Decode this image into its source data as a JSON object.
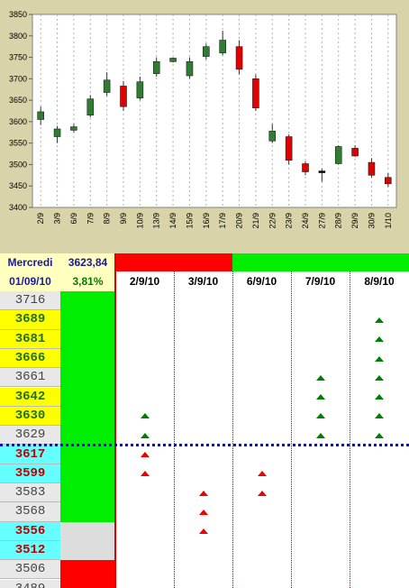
{
  "chart_data": {
    "type": "candlestick",
    "ylim": [
      3400,
      3850
    ],
    "yticks": [
      3400,
      3450,
      3500,
      3550,
      3600,
      3650,
      3700,
      3750,
      3800,
      3850
    ],
    "categories": [
      "2/9",
      "3/9",
      "6/9",
      "7/9",
      "8/9",
      "9/9",
      "10/9",
      "13/9",
      "14/9",
      "15/9",
      "16/9",
      "17/9",
      "20/9",
      "21/9",
      "22/9",
      "23/9",
      "24/9",
      "27/9",
      "28/9",
      "29/9",
      "30/9",
      "1/10"
    ],
    "candles": [
      {
        "o": 3605,
        "h": 3635,
        "l": 3592,
        "c": 3623,
        "color": "green"
      },
      {
        "o": 3565,
        "h": 3590,
        "l": 3550,
        "c": 3583,
        "color": "green"
      },
      {
        "o": 3580,
        "h": 3595,
        "l": 3575,
        "c": 3588,
        "color": "green"
      },
      {
        "o": 3615,
        "h": 3662,
        "l": 3610,
        "c": 3653,
        "color": "green"
      },
      {
        "o": 3668,
        "h": 3715,
        "l": 3660,
        "c": 3697,
        "color": "green"
      },
      {
        "o": 3683,
        "h": 3695,
        "l": 3625,
        "c": 3635,
        "color": "red"
      },
      {
        "o": 3655,
        "h": 3705,
        "l": 3650,
        "c": 3693,
        "color": "green"
      },
      {
        "o": 3712,
        "h": 3750,
        "l": 3705,
        "c": 3740,
        "color": "green"
      },
      {
        "o": 3740,
        "h": 3750,
        "l": 3738,
        "c": 3748,
        "color": "green"
      },
      {
        "o": 3707,
        "h": 3750,
        "l": 3700,
        "c": 3740,
        "color": "green"
      },
      {
        "o": 3752,
        "h": 3782,
        "l": 3745,
        "c": 3775,
        "color": "green"
      },
      {
        "o": 3760,
        "h": 3812,
        "l": 3755,
        "c": 3790,
        "color": "green"
      },
      {
        "o": 3775,
        "h": 3790,
        "l": 3710,
        "c": 3722,
        "color": "red"
      },
      {
        "o": 3700,
        "h": 3710,
        "l": 3625,
        "c": 3632,
        "color": "red"
      },
      {
        "o": 3555,
        "h": 3595,
        "l": 3550,
        "c": 3578,
        "color": "green"
      },
      {
        "o": 3565,
        "h": 3570,
        "l": 3500,
        "c": 3510,
        "color": "red"
      },
      {
        "o": 3502,
        "h": 3508,
        "l": 3475,
        "c": 3483,
        "color": "red"
      },
      {
        "o": 3483,
        "h": 3490,
        "l": 3460,
        "c": 3485,
        "color": "black"
      },
      {
        "o": 3502,
        "h": 3545,
        "l": 3500,
        "c": 3542,
        "color": "green"
      },
      {
        "o": 3538,
        "h": 3545,
        "l": 3518,
        "c": 3520,
        "color": "red"
      },
      {
        "o": 3505,
        "h": 3515,
        "l": 3470,
        "c": 3475,
        "color": "red"
      },
      {
        "o": 3470,
        "h": 3480,
        "l": 3448,
        "c": 3455,
        "color": "red"
      }
    ]
  },
  "header": {
    "day": "Mercredi",
    "date": "01/09/10",
    "value": "3623,84",
    "pct": "3,81%"
  },
  "columns": [
    "2/9/10",
    "3/9/10",
    "6/9/10",
    "7/9/10",
    "8/9/10"
  ],
  "column_status_colors": [
    "#ff0000",
    "#ff0000",
    "#00ee00",
    "#00ee00",
    "#00ee00"
  ],
  "levels": [
    {
      "label": "3716",
      "bg": "#e8e8e8",
      "fg": "#444444",
      "bold": false
    },
    {
      "label": "3689",
      "bg": "#ffff00",
      "fg": "#207020",
      "bold": true
    },
    {
      "label": "3681",
      "bg": "#ffff00",
      "fg": "#207020",
      "bold": true
    },
    {
      "label": "3666",
      "bg": "#ffff00",
      "fg": "#207020",
      "bold": true
    },
    {
      "label": "3661",
      "bg": "#e8e8e8",
      "fg": "#444444",
      "bold": false
    },
    {
      "label": "3642",
      "bg": "#ffff00",
      "fg": "#207020",
      "bold": true
    },
    {
      "label": "3630",
      "bg": "#ffff00",
      "fg": "#207020",
      "bold": true
    },
    {
      "label": "3629",
      "bg": "#e8e8e8",
      "fg": "#444444",
      "bold": false
    },
    {
      "label": "3617",
      "bg": "#66ffff",
      "fg": "#c00000",
      "bold": true
    },
    {
      "label": "3599",
      "bg": "#66ffff",
      "fg": "#c00000",
      "bold": true
    },
    {
      "label": "3583",
      "bg": "#e8e8e8",
      "fg": "#444444",
      "bold": false
    },
    {
      "label": "3568",
      "bg": "#e8e8e8",
      "fg": "#444444",
      "bold": false
    },
    {
      "label": "3556",
      "bg": "#66ffff",
      "fg": "#c00000",
      "bold": true
    },
    {
      "label": "3512",
      "bg": "#66ffff",
      "fg": "#c00000",
      "bold": true
    },
    {
      "label": "3506",
      "bg": "#e8e8e8",
      "fg": "#444444",
      "bold": false
    },
    {
      "label": "3489",
      "bg": "#e8e8e8",
      "fg": "#444444",
      "bold": false
    }
  ],
  "trend_blocks": [
    {
      "from": 0,
      "to": 12,
      "color": "#00ee00"
    },
    {
      "from": 12,
      "to": 14,
      "color": "#dddddd"
    },
    {
      "from": 14,
      "to": 16,
      "color": "#ff0000"
    }
  ],
  "markers": [
    {
      "col": 0,
      "row": 6,
      "color": "green"
    },
    {
      "col": 0,
      "row": 7,
      "color": "green"
    },
    {
      "col": 0,
      "row": 8,
      "color": "red"
    },
    {
      "col": 0,
      "row": 9,
      "color": "red"
    },
    {
      "col": 1,
      "row": 10,
      "color": "red"
    },
    {
      "col": 1,
      "row": 11,
      "color": "red"
    },
    {
      "col": 1,
      "row": 12,
      "color": "red"
    },
    {
      "col": 2,
      "row": 9,
      "color": "red"
    },
    {
      "col": 2,
      "row": 10,
      "color": "red"
    },
    {
      "col": 3,
      "row": 4,
      "color": "green"
    },
    {
      "col": 3,
      "row": 5,
      "color": "green"
    },
    {
      "col": 3,
      "row": 6,
      "color": "green"
    },
    {
      "col": 3,
      "row": 7,
      "color": "green"
    },
    {
      "col": 4,
      "row": 1,
      "color": "green"
    },
    {
      "col": 4,
      "row": 2,
      "color": "green"
    },
    {
      "col": 4,
      "row": 3,
      "color": "green"
    },
    {
      "col": 4,
      "row": 4,
      "color": "green"
    },
    {
      "col": 4,
      "row": 5,
      "color": "green"
    },
    {
      "col": 4,
      "row": 6,
      "color": "green"
    },
    {
      "col": 4,
      "row": 7,
      "color": "green"
    }
  ],
  "divider_after_row": 8
}
